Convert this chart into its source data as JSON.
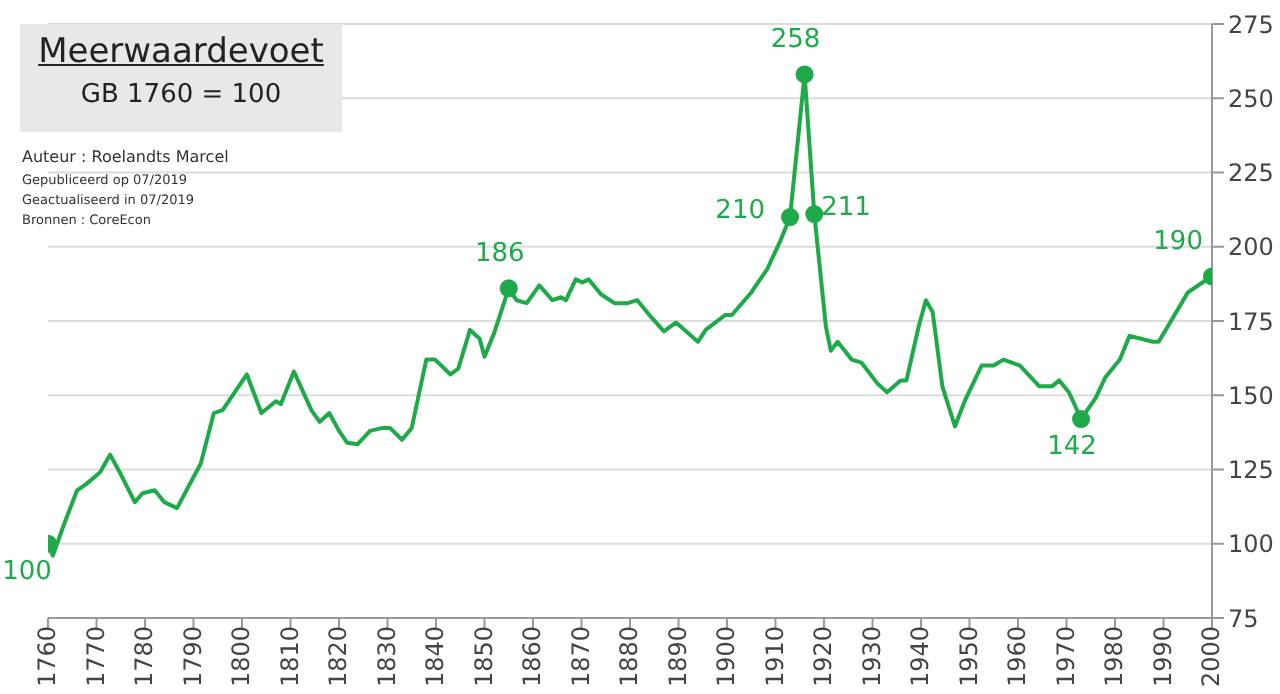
{
  "chart_data": {
    "type": "line",
    "title": "Meerwaardevoet",
    "subtitle": "GB 1760 = 100",
    "annotations": [
      "Auteur : Roelandts Marcel",
      "Gepubliceerd op 07/2019",
      "Geactualiseerd in 07/2019",
      "Bronnen : CoreEcon"
    ],
    "series": [
      {
        "color": "#1faa4a",
        "marker": "none",
        "x": [
          1760,
          1761,
          1763.4,
          1766,
          1767.8,
          1770.7,
          1772.8,
          1774.8,
          1777.9,
          1779.5,
          1782,
          1784,
          1786.6,
          1791.5,
          1794.2,
          1796,
          1801,
          1804,
          1807,
          1808,
          1810.7,
          1814.3,
          1816,
          1818,
          1820,
          1821.7,
          1823.8,
          1826.4,
          1829,
          1830.5,
          1833,
          1835,
          1838,
          1839.8,
          1843,
          1844.6,
          1847,
          1849,
          1850,
          1852,
          1855,
          1856.6,
          1858.7,
          1861.3,
          1864,
          1865.8,
          1866.8,
          1868.8,
          1870.2,
          1871.5,
          1874,
          1876.8,
          1879.5,
          1881.5,
          1884,
          1887,
          1889.5,
          1894,
          1895.6,
          1899.6,
          1901,
          1905,
          1908.3,
          1911,
          1913,
          1916,
          1918,
          1920.4,
          1921.4,
          1922.8,
          1925.7,
          1927.7,
          1931,
          1933,
          1935.8,
          1937,
          1939.5,
          1941,
          1942.4,
          1944.4,
          1947,
          1949,
          1952.5,
          1955,
          1957,
          1960.4,
          1964.4,
          1967,
          1968.5,
          1970.5,
          1973,
          1976,
          1978,
          1981,
          1983,
          1987.8,
          1989,
          1993,
          1995,
          1999,
          2000
        ],
        "values": [
          100,
          96,
          107,
          118,
          120,
          124,
          130,
          124,
          114,
          117,
          118,
          114,
          112,
          127,
          144,
          145,
          157,
          144,
          148,
          147,
          158,
          145,
          141,
          144,
          138,
          134,
          133.5,
          138,
          139,
          139,
          135,
          139,
          162,
          162,
          157,
          159,
          172,
          169,
          163,
          171,
          186,
          182,
          181,
          187,
          182,
          183,
          182,
          189,
          188,
          189,
          184,
          181,
          181,
          182,
          177,
          171.5,
          174.5,
          168,
          172,
          177,
          177,
          184.6,
          192.5,
          202,
          210,
          258,
          211,
          173,
          165,
          168,
          162,
          161,
          154,
          151,
          155,
          155,
          173,
          182,
          178,
          153,
          139.5,
          148,
          160,
          160,
          162,
          160,
          153,
          153,
          155,
          151,
          142,
          149,
          156,
          162,
          170,
          168,
          168,
          179,
          184.6,
          189,
          190
        ]
      },
      {
        "type": "scatter",
        "color": "#1faa4a",
        "marker": "circle",
        "x": [
          1760,
          1855,
          1913,
          1916,
          1918,
          1973,
          2000
        ],
        "values": [
          100,
          186,
          210,
          258,
          211,
          142,
          190
        ],
        "value_labels": [
          "100",
          "186",
          "210",
          "258",
          "211",
          "142",
          "190"
        ]
      }
    ],
    "xlim": [
      1760,
      2000
    ],
    "xticks": [
      1760,
      1770,
      1780,
      1790,
      1800,
      1810,
      1820,
      1830,
      1840,
      1850,
      1860,
      1870,
      1880,
      1890,
      1900,
      1910,
      1920,
      1930,
      1940,
      1950,
      1960,
      1970,
      1980,
      1990,
      2000
    ],
    "ylim": [
      75,
      275
    ],
    "yticks": [
      75,
      100,
      125,
      150,
      175,
      200,
      225,
      250,
      275
    ],
    "grid": "y"
  }
}
